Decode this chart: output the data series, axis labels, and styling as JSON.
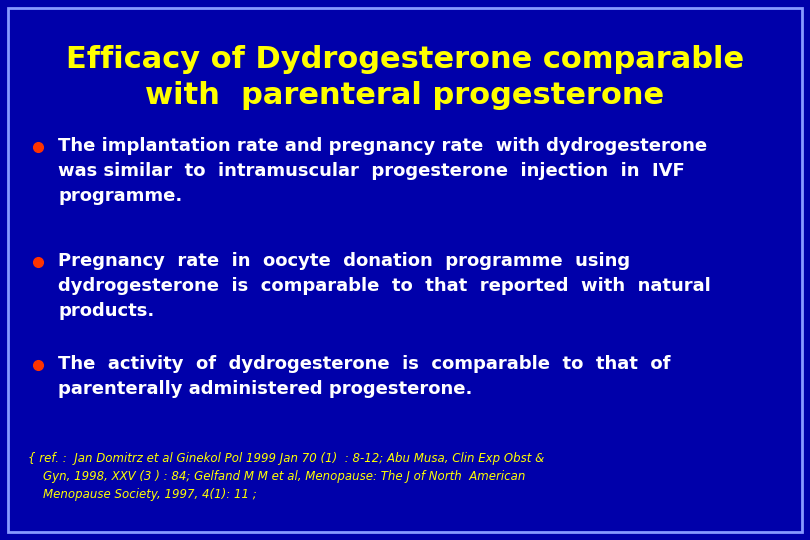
{
  "title_line1": "Efficacy of Dydrogesterone comparable",
  "title_line2": "with  parenteral progesterone",
  "title_color": "#FFFF00",
  "background_color": "#0000AA",
  "border_color": "#8899FF",
  "bullet_color": "#FF3300",
  "bullet_text_color": "#FFFFFF",
  "reference_text_line1": "{ ref. :  Jan Domitrz et al Ginekol Pol 1999 Jan 70 (1)  : 8-12; Abu Musa, Clin Exp Obst &",
  "reference_text_line2": "    Gyn, 1998, XXV (3 ) : 84; Gelfand M M et al, Menopause: The J of North  American",
  "reference_text_line3": "    Menopause Society, 1997, 4(1): 11 ;",
  "reference_color": "#FFFF00",
  "figsize": [
    8.1,
    5.4
  ],
  "dpi": 100
}
